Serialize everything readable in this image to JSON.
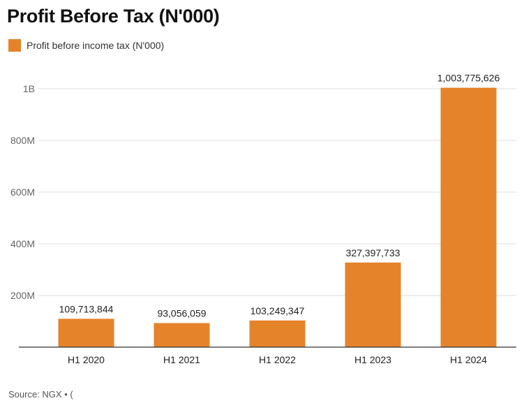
{
  "header": {
    "title": "Profit Before Tax (N'000)"
  },
  "legend": {
    "label": "Profit before income tax (N'000)",
    "color": "#e5832a"
  },
  "footer": {
    "source": "Source: NGX • ("
  },
  "chart_data": {
    "type": "bar",
    "title": "Profit Before Tax (N'000)",
    "categories": [
      "H1 2020",
      "H1 2021",
      "H1 2022",
      "H1 2023",
      "H1 2024"
    ],
    "series": [
      {
        "name": "Profit before income tax (N'000)",
        "values": [
          109713844,
          93056059,
          103249347,
          327397733,
          1003775626
        ]
      }
    ],
    "value_labels": [
      "109,713,844",
      "93,056,059",
      "103,249,347",
      "327,397,733",
      "1,003,775,626"
    ],
    "yticks": [
      200000000,
      400000000,
      600000000,
      800000000,
      1000000000
    ],
    "ytick_labels": [
      "200M",
      "400M",
      "600M",
      "800M",
      "1B"
    ],
    "ylim": [
      0,
      1100000000
    ],
    "xlabel": "",
    "ylabel": "",
    "grid": true,
    "bar_color": "#e5832a"
  }
}
